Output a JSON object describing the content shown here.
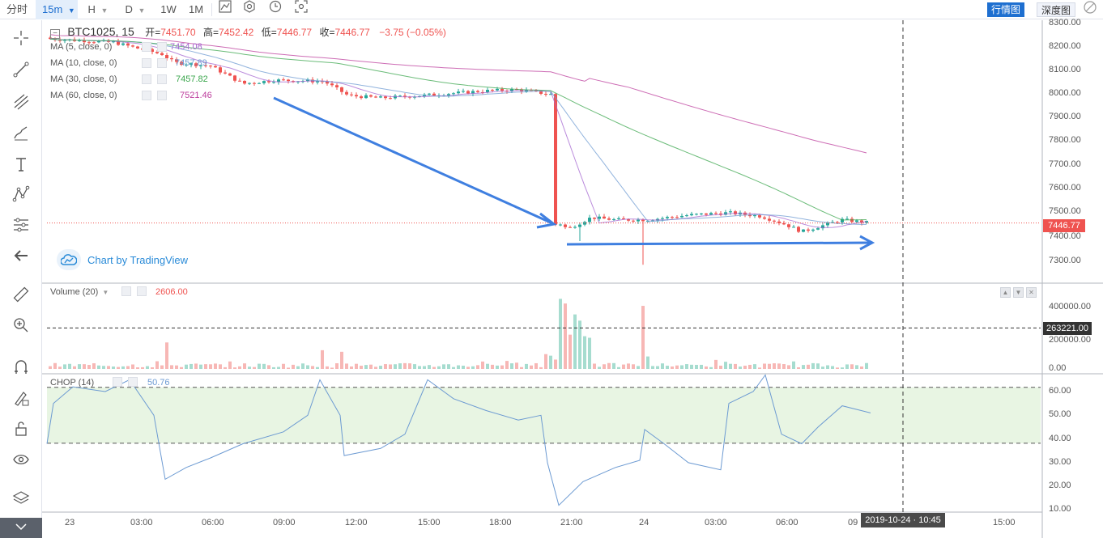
{
  "toolbar": {
    "items": [
      {
        "label": "分时",
        "active": false
      },
      {
        "label": "15m",
        "active": true
      },
      {
        "label": "H",
        "active": false
      },
      {
        "label": "D",
        "active": false
      },
      {
        "label": "1W",
        "active": false
      },
      {
        "label": "1M",
        "active": false
      }
    ],
    "right_buttons": [
      {
        "label": "行情图",
        "active": true
      },
      {
        "label": "深度图",
        "active": false
      }
    ]
  },
  "legend": {
    "symbol": "BTC1025, 15",
    "open_label": "开=",
    "open": "7451.70",
    "high_label": "高=",
    "high": "7452.42",
    "low_label": "低=",
    "low": "7446.77",
    "close_label": "收=",
    "close": "7446.77",
    "change": "−3.75 (−0.05%)",
    "ma": [
      {
        "label": "MA (5, close, 0)",
        "value": "7454.08",
        "color": "#a466d0"
      },
      {
        "label": "MA (10, close, 0)",
        "value": "7457.89",
        "color": "#6c9ad2"
      },
      {
        "label": "MA (30, close, 0)",
        "value": "7457.82",
        "color": "#3aa64c"
      },
      {
        "label": "MA (60, close, 0)",
        "value": "7521.46",
        "color": "#bc3c9c"
      }
    ],
    "volume_label": "Volume (20)",
    "volume_value": "2606.00",
    "chop_label": "CHOP (14)",
    "chop_value": "50.76"
  },
  "badge": {
    "label": "Chart by TradingView"
  },
  "price_axis": {
    "ticks": [
      "8300.00",
      "8200.00",
      "8100.00",
      "8000.00",
      "7900.00",
      "7800.00",
      "7700.00",
      "7600.00",
      "7500.00",
      "7400.00",
      "7300.00"
    ],
    "last_price": "7446.77"
  },
  "volume_axis": {
    "ticks": [
      "400000.00",
      "200000.00",
      "0.00"
    ],
    "crosshair_value": "263221.00"
  },
  "chop_axis": {
    "ticks": [
      "60.00",
      "50.00",
      "40.00",
      "30.00",
      "20.00",
      "10.00"
    ]
  },
  "time_axis": {
    "ticks": [
      "23",
      "03:00",
      "06:00",
      "09:00",
      "12:00",
      "15:00",
      "18:00",
      "21:00",
      "24",
      "03:00",
      "06:00",
      "09",
      "15:00"
    ],
    "crosshair_date": "2019-10-24 · 10:45"
  },
  "colors": {
    "up": "#26a69a",
    "down": "#ef5350",
    "accent": "#1e6fd0",
    "arrow": "#3f7fe0"
  },
  "chart_data": {
    "type": "candlestick",
    "symbol": "BTC1025",
    "interval": "15",
    "x": [
      "23 00:00",
      "23 03:00",
      "23 06:00",
      "23 09:00",
      "23 12:00",
      "23 15:00",
      "23 18:00",
      "23 20:30",
      "23 21:00",
      "23 22:00",
      "24 00:00",
      "24 03:00",
      "24 06:00",
      "24 08:00",
      "24 09:45"
    ],
    "close": [
      8230,
      8180,
      8080,
      8040,
      7960,
      7985,
      8010,
      7990,
      7440,
      7480,
      7460,
      7490,
      7420,
      7470,
      7446.77
    ],
    "volume": [
      30000,
      25000,
      45000,
      40000,
      30000,
      45000,
      35000,
      460000,
      330000,
      100000,
      410000,
      20000,
      25000,
      30000,
      2606
    ],
    "chop": [
      38,
      63,
      25,
      28,
      37,
      62,
      45,
      13,
      25,
      43,
      28,
      62,
      40,
      45,
      50.76
    ],
    "ylim": [
      7270,
      8320
    ],
    "volume_ylim": [
      0,
      480000
    ],
    "chop_ylim": [
      9,
      64
    ]
  }
}
